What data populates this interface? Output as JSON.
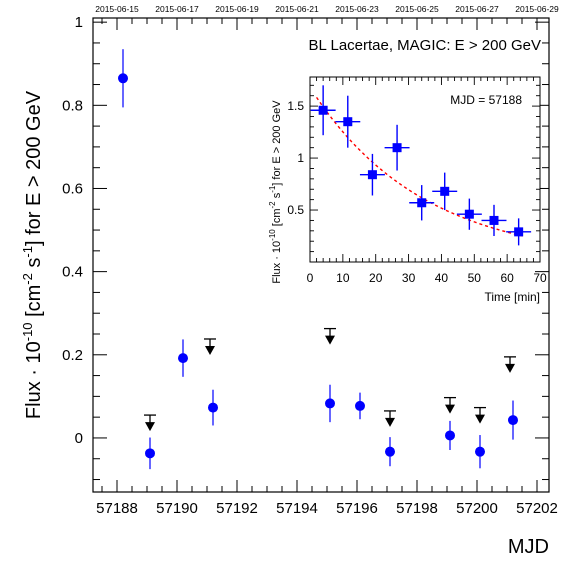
{
  "chart_data": [
    {
      "type": "scatter",
      "title": "BL Lacertae, MAGIC: E > 200 GeV",
      "xlabel": "MJD",
      "ylabel": "Flux · 10^-10 [cm^-2 s^-1] for E > 200 GeV",
      "xlim": [
        57187.2,
        57202.4
      ],
      "ylim": [
        -0.13,
        1.01
      ],
      "x_ticks": [
        57188,
        57190,
        57192,
        57194,
        57196,
        57198,
        57200,
        57202
      ],
      "y_ticks": [
        0,
        0.2,
        0.4,
        0.6,
        0.8,
        1
      ],
      "top_axis_dates": [
        {
          "label": "2015-06-15",
          "mjd": 57188
        },
        {
          "label": "2015-06-17",
          "mjd": 57190
        },
        {
          "label": "2015-06-19",
          "mjd": 57192
        },
        {
          "label": "2015-06-21",
          "mjd": 57194
        },
        {
          "label": "2015-06-23",
          "mjd": 57196
        },
        {
          "label": "2015-06-25",
          "mjd": 57198
        },
        {
          "label": "2015-06-27",
          "mjd": 57200
        },
        {
          "label": "2015-06-29",
          "mjd": 57202
        }
      ],
      "series": [
        {
          "color": "#0000ff",
          "points": [
            {
              "x": 57188.2,
              "y": 0.865,
              "err": 0.07
            },
            {
              "x": 57189.1,
              "y": -0.037,
              "err": 0.038
            },
            {
              "x": 57190.2,
              "y": 0.192,
              "err": 0.045
            },
            {
              "x": 57191.2,
              "y": 0.073,
              "err": 0.043
            },
            {
              "x": 57195.1,
              "y": 0.083,
              "err": 0.045
            },
            {
              "x": 57196.1,
              "y": 0.077,
              "err": 0.032
            },
            {
              "x": 57197.1,
              "y": -0.033,
              "err": 0.035
            },
            {
              "x": 57199.1,
              "y": 0.006,
              "err": 0.035
            },
            {
              "x": 57200.1,
              "y": -0.033,
              "err": 0.04
            },
            {
              "x": 57201.2,
              "y": 0.043,
              "err": 0.047
            }
          ]
        },
        {
          "color": "#000000",
          "upper_limits": [
            {
              "x": 57189.1,
              "y": 0.055
            },
            {
              "x": 57191.1,
              "y": 0.238
            },
            {
              "x": 57195.1,
              "y": 0.263
            },
            {
              "x": 57197.1,
              "y": 0.065
            },
            {
              "x": 57199.1,
              "y": 0.097
            },
            {
              "x": 57200.1,
              "y": 0.073
            },
            {
              "x": 57201.1,
              "y": 0.195
            }
          ]
        }
      ]
    },
    {
      "type": "scatter",
      "annotation": "MJD = 57188",
      "xlabel": "Time [min]",
      "ylabel": "Flux · 10^-10 [cm^-2 s^-1] for E > 200 GeV",
      "xlim": [
        0,
        70
      ],
      "ylim": [
        0,
        1.78
      ],
      "x_ticks": [
        0,
        10,
        20,
        30,
        40,
        50,
        60,
        70
      ],
      "y_ticks": [
        0.5,
        1,
        1.5
      ],
      "series": [
        {
          "color": "#0000ff",
          "points": [
            {
              "x": 4,
              "y": 1.46,
              "xerr": 3.8,
              "yerr": 0.24
            },
            {
              "x": 11.5,
              "y": 1.35,
              "xerr": 3.8,
              "yerr": 0.25
            },
            {
              "x": 19,
              "y": 0.84,
              "xerr": 3.8,
              "yerr": 0.2
            },
            {
              "x": 26.5,
              "y": 1.1,
              "xerr": 3.8,
              "yerr": 0.22
            },
            {
              "x": 34,
              "y": 0.57,
              "xerr": 3.8,
              "yerr": 0.17
            },
            {
              "x": 41,
              "y": 0.68,
              "xerr": 3.8,
              "yerr": 0.18
            },
            {
              "x": 48.5,
              "y": 0.46,
              "xerr": 3.8,
              "yerr": 0.15
            },
            {
              "x": 56,
              "y": 0.4,
              "xerr": 3.8,
              "yerr": 0.15
            },
            {
              "x": 63.5,
              "y": 0.29,
              "xerr": 3.8,
              "yerr": 0.13
            }
          ]
        },
        {
          "color": "#ff0000",
          "line_style": "dashed",
          "fit": {
            "a": 1.68,
            "tau_min": 34,
            "x_range": [
              2,
              65
            ]
          }
        }
      ]
    }
  ]
}
